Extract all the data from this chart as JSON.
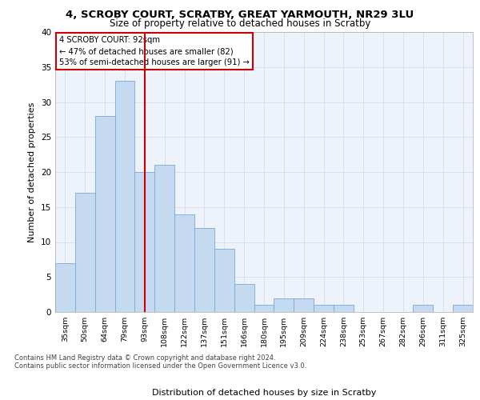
{
  "title1": "4, SCROBY COURT, SCRATBY, GREAT YARMOUTH, NR29 3LU",
  "title2": "Size of property relative to detached houses in Scratby",
  "xlabel": "Distribution of detached houses by size in Scratby",
  "ylabel": "Number of detached properties",
  "categories": [
    "35sqm",
    "50sqm",
    "64sqm",
    "79sqm",
    "93sqm",
    "108sqm",
    "122sqm",
    "137sqm",
    "151sqm",
    "166sqm",
    "180sqm",
    "195sqm",
    "209sqm",
    "224sqm",
    "238sqm",
    "253sqm",
    "267sqm",
    "282sqm",
    "296sqm",
    "311sqm",
    "325sqm"
  ],
  "values": [
    7,
    17,
    28,
    33,
    20,
    21,
    14,
    12,
    9,
    4,
    1,
    2,
    2,
    1,
    1,
    0,
    0,
    0,
    1,
    0,
    1
  ],
  "bar_color": "#c5d9f1",
  "bar_edge_color": "#7aa8d4",
  "grid_color": "#d0d8e8",
  "vline_color": "#cc0000",
  "vline_index": 4.5,
  "annotation_text": "4 SCROBY COURT: 92sqm\n← 47% of detached houses are smaller (82)\n53% of semi-detached houses are larger (91) →",
  "annotation_box_color": "#cc0000",
  "ylim": [
    0,
    40
  ],
  "yticks": [
    0,
    5,
    10,
    15,
    20,
    25,
    30,
    35,
    40
  ],
  "footer1": "Contains HM Land Registry data © Crown copyright and database right 2024.",
  "footer2": "Contains public sector information licensed under the Open Government Licence v3.0.",
  "bg_color": "#eef2fa"
}
